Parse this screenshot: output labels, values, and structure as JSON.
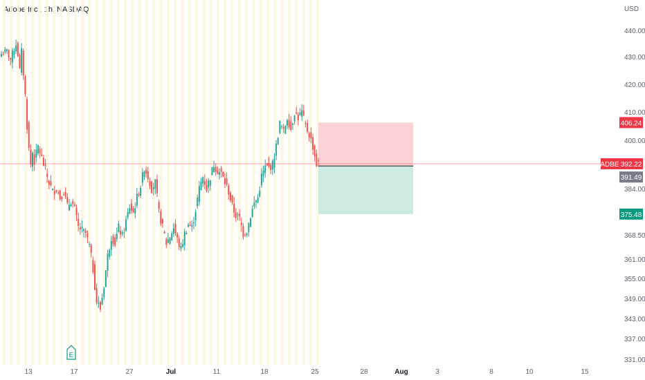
{
  "header": {
    "title": "Adobe Inc., 1h, NASDAQ"
  },
  "chart_data": {
    "type": "candlestick",
    "symbol": "ADBE",
    "ylabel": "USD",
    "ylim": [
      331,
      444
    ],
    "y_ticks": [
      "440.00",
      "430.00",
      "420.00",
      "410.00",
      "400.00",
      "384.00",
      "368.50",
      "361.00",
      "355.00",
      "349.00",
      "343.00",
      "337.00",
      "331.00"
    ],
    "y_tick_values": [
      440,
      430,
      420,
      410,
      400,
      384,
      368.5,
      361,
      355,
      349,
      343,
      337,
      331
    ],
    "x_ticks": [
      "13",
      "17",
      "27",
      "Jul",
      "11",
      "18",
      "25",
      "28",
      "Aug",
      "3",
      "8",
      "10",
      "15"
    ],
    "x_ticks_bold": [
      "Jul",
      "Aug"
    ],
    "price_path": [
      [
        0,
        431
      ],
      [
        3,
        432
      ],
      [
        5,
        429
      ],
      [
        7,
        433
      ],
      [
        8,
        435
      ],
      [
        9,
        431
      ],
      [
        10,
        425
      ],
      [
        11,
        432
      ],
      [
        12,
        424
      ],
      [
        13,
        416
      ],
      [
        14,
        405
      ],
      [
        15,
        397
      ],
      [
        16,
        392
      ],
      [
        17,
        396
      ],
      [
        18,
        393
      ],
      [
        20,
        398
      ],
      [
        22,
        394
      ],
      [
        24,
        390
      ],
      [
        26,
        386
      ],
      [
        28,
        383
      ],
      [
        30,
        384
      ],
      [
        32,
        381
      ],
      [
        34,
        383
      ],
      [
        36,
        378
      ],
      [
        38,
        380
      ],
      [
        40,
        377
      ],
      [
        42,
        371
      ],
      [
        44,
        370
      ],
      [
        46,
        369
      ],
      [
        48,
        365
      ],
      [
        50,
        358
      ],
      [
        52,
        348
      ],
      [
        54,
        346
      ],
      [
        56,
        353
      ],
      [
        58,
        362
      ],
      [
        60,
        368
      ],
      [
        62,
        366
      ],
      [
        64,
        371
      ],
      [
        66,
        368
      ],
      [
        68,
        373
      ],
      [
        70,
        378
      ],
      [
        72,
        376
      ],
      [
        74,
        381
      ],
      [
        76,
        385
      ],
      [
        78,
        391
      ],
      [
        80,
        388
      ],
      [
        82,
        384
      ],
      [
        84,
        386
      ],
      [
        86,
        376
      ],
      [
        88,
        371
      ],
      [
        90,
        366
      ],
      [
        92,
        368
      ],
      [
        94,
        371
      ],
      [
        96,
        367
      ],
      [
        98,
        364
      ],
      [
        100,
        369
      ],
      [
        102,
        372
      ],
      [
        104,
        371
      ],
      [
        106,
        377
      ],
      [
        108,
        384
      ],
      [
        110,
        388
      ],
      [
        112,
        384
      ],
      [
        114,
        388
      ],
      [
        116,
        392
      ],
      [
        118,
        390
      ],
      [
        120,
        389
      ],
      [
        122,
        386
      ],
      [
        124,
        383
      ],
      [
        126,
        378
      ],
      [
        128,
        375
      ],
      [
        130,
        374
      ],
      [
        132,
        369
      ],
      [
        134,
        370
      ],
      [
        136,
        375
      ],
      [
        138,
        379
      ],
      [
        140,
        381
      ],
      [
        142,
        388
      ],
      [
        144,
        391
      ],
      [
        146,
        391
      ],
      [
        148,
        392
      ],
      [
        150,
        398
      ],
      [
        152,
        406
      ],
      [
        154,
        403
      ],
      [
        156,
        408
      ],
      [
        158,
        404
      ],
      [
        160,
        410
      ],
      [
        162,
        408
      ],
      [
        164,
        410
      ],
      [
        166,
        405
      ],
      [
        168,
        402
      ],
      [
        170,
        398
      ],
      [
        172,
        392
      ],
      [
        173,
        392.22
      ]
    ],
    "last_price": {
      "label": "ADBE",
      "value": "392.22",
      "color": "#f23645"
    },
    "position": {
      "type": "short",
      "stop": "406.24",
      "entry": "391.49",
      "target": "375.48",
      "stop_color": "#f23645",
      "entry_color": "#787b86",
      "target_color": "#089981",
      "loss_zone_color": "#fbd3d6",
      "profit_zone_color": "#cdeae3"
    },
    "up_color": "#26a69a",
    "down_color": "#ef5350",
    "session_bands": true,
    "earnings_marker": "E",
    "grid": false
  }
}
